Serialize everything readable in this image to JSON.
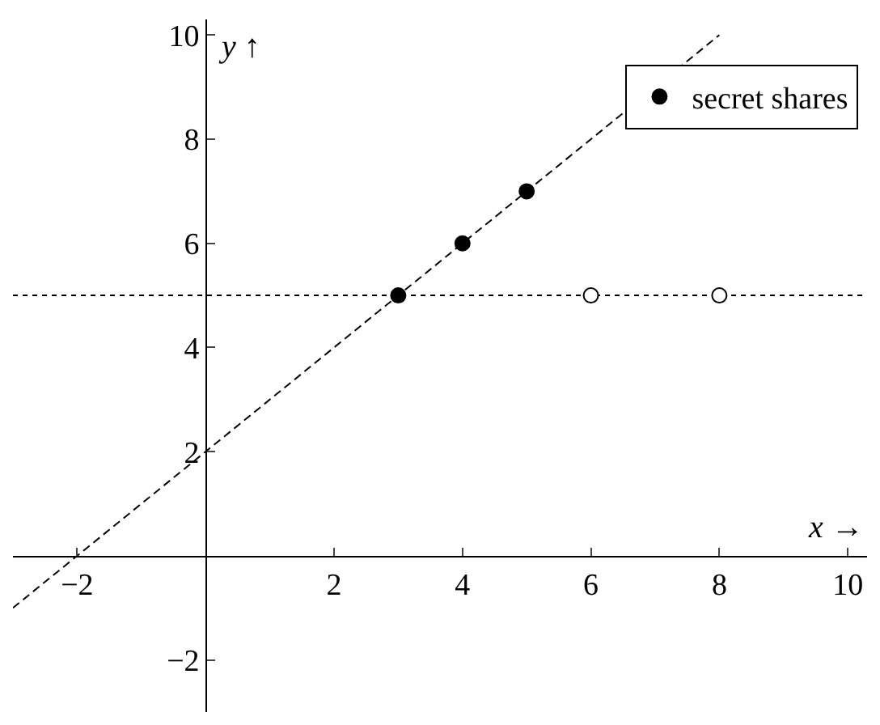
{
  "chart_data": {
    "type": "scatter",
    "xlabel": "x →",
    "ylabel": "y ↑",
    "marker": "circle",
    "legend": "top right",
    "grid": false,
    "xlim": [
      -3,
      10.3
    ],
    "ylim": [
      -3,
      10.3
    ],
    "xticks": [
      -2,
      2,
      4,
      6,
      8,
      10
    ],
    "yticks": [
      -2,
      2,
      4,
      6,
      8,
      10
    ],
    "series": [
      {
        "name": "secret shares",
        "color": "#000000",
        "x": [
          3,
          4,
          5
        ],
        "values": [
          5,
          6,
          7
        ]
      },
      {
        "color": "#ffffff",
        "x": [
          6,
          8
        ],
        "values": [
          5,
          5
        ]
      },
      {
        "type": "line",
        "line_style": "dashed",
        "marker": "none",
        "color": "#000000",
        "x": [
          -3,
          8
        ],
        "values": [
          -1,
          10
        ]
      }
    ],
    "ref_lines": [
      {
        "axis": "y",
        "value": 5,
        "line_style": "dotted",
        "color": "#000000"
      }
    ]
  }
}
